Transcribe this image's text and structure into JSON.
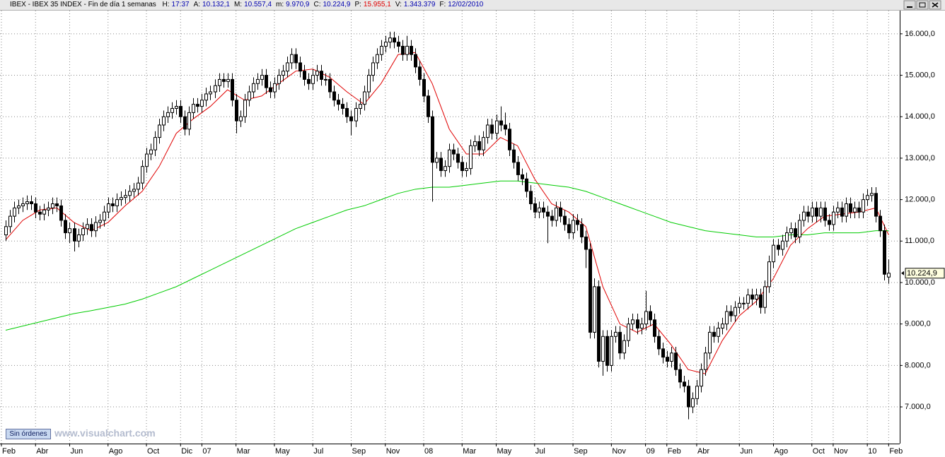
{
  "header": {
    "title": "IBEX - IBEX 35 INDEX - Fin de día 1 semanas",
    "fields": [
      {
        "label": "H:",
        "value": "17:37",
        "color": "#0000b0"
      },
      {
        "label": "A:",
        "value": "10.132,1",
        "color": "#0000b0"
      },
      {
        "label": "M:",
        "value": "10.557,4",
        "color": "#0000b0"
      },
      {
        "label": "m:",
        "value": "9.970,9",
        "color": "#0000b0"
      },
      {
        "label": "C:",
        "value": "10.224,9",
        "color": "#0000b0"
      },
      {
        "label": "P:",
        "value": "15.955,1",
        "color": "#e00000"
      },
      {
        "label": "V:",
        "value": "1.343.379",
        "color": "#0000b0"
      },
      {
        "label": "F:",
        "value": "12/02/2010",
        "color": "#0000b0"
      }
    ]
  },
  "chart_data": {
    "type": "candlestick",
    "up_color": "#ffffff",
    "down_color": "#000000",
    "wick_color": "#000000",
    "open": [
      11150,
      11350,
      11600,
      11800,
      11850,
      11900,
      11950,
      11900,
      11700,
      11650,
      11750,
      11800,
      11900,
      11850,
      11500,
      11200,
      11300,
      11000,
      11150,
      11300,
      11400,
      11250,
      11450,
      11500,
      11700,
      11900,
      11850,
      12000,
      12050,
      12100,
      12200,
      12250,
      12400,
      12800,
      13100,
      13200,
      13500,
      13800,
      14000,
      14100,
      14200,
      14250,
      14000,
      13700,
      14100,
      14300,
      14250,
      14400,
      14550,
      14600,
      14750,
      14900,
      14850,
      14900,
      14400,
      13900,
      14000,
      14400,
      14600,
      14800,
      14900,
      15000,
      14700,
      14600,
      14800,
      15000,
      15100,
      15300,
      15500,
      15300,
      15100,
      14900,
      14800,
      15000,
      15100,
      14900,
      14900,
      14600,
      14400,
      14300,
      14200,
      14000,
      13900,
      14200,
      14300,
      14600,
      15000,
      15300,
      15500,
      15700,
      15800,
      15900,
      15800,
      15700,
      15500,
      15700,
      15500,
      15200,
      14900,
      14500,
      14000,
      12900,
      13000,
      12700,
      12800,
      13200,
      13100,
      12900,
      12700,
      12750,
      13300,
      13400,
      13200,
      13500,
      13800,
      13600,
      13900,
      13800,
      13700,
      13200,
      12900,
      12600,
      12500,
      12200,
      11900,
      11700,
      11800,
      11700,
      11600,
      11500,
      11800,
      11600,
      11400,
      11200,
      11500,
      11400,
      11100,
      10800,
      8800,
      9900,
      8100,
      8700,
      8000,
      8700,
      8800,
      8300,
      8600,
      9000,
      9100,
      8900,
      9000,
      9300,
      9100,
      8700,
      8400,
      8200,
      8100,
      8300,
      7900,
      7600,
      7500,
      7000,
      7200,
      7500,
      7900,
      8300,
      8800,
      8700,
      8900,
      9000,
      9300,
      9200,
      9400,
      9500,
      9500,
      9700,
      9600,
      9700,
      9400,
      9900,
      10500,
      10900,
      10800,
      11000,
      11200,
      11300,
      11100,
      11500,
      11700,
      11600,
      11800,
      11600,
      11800,
      11500,
      11400,
      11700,
      11800,
      11600,
      11900,
      11700,
      11800,
      11700,
      12000,
      12100,
      12150,
      11600,
      11250,
      10132.1
    ],
    "high": [
      11500,
      11750,
      11950,
      12000,
      12050,
      12100,
      12100,
      12050,
      11850,
      11900,
      11950,
      12050,
      12050,
      12000,
      11650,
      11450,
      11450,
      11300,
      11450,
      11550,
      11550,
      11600,
      11650,
      11850,
      12050,
      12050,
      12150,
      12200,
      12250,
      12350,
      12400,
      12550,
      12950,
      13250,
      13350,
      13650,
      13950,
      14150,
      14250,
      14350,
      14400,
      14400,
      14150,
      14250,
      14450,
      14450,
      14550,
      14700,
      14750,
      14900,
      15050,
      15050,
      15050,
      15050,
      14550,
      14150,
      14550,
      14750,
      14950,
      15050,
      15150,
      15150,
      14850,
      14950,
      15150,
      15250,
      15450,
      15650,
      15650,
      15450,
      15250,
      15050,
      15150,
      15250,
      15250,
      15050,
      15050,
      14750,
      14550,
      14450,
      14350,
      14150,
      14350,
      14450,
      14750,
      15150,
      15450,
      15650,
      15850,
      15950,
      16050,
      16050,
      15950,
      15850,
      15950,
      15850,
      15650,
      15350,
      15050,
      14650,
      14150,
      13150,
      13150,
      12950,
      13350,
      13350,
      13250,
      13050,
      12900,
      13450,
      13550,
      13550,
      13650,
      13950,
      13950,
      14050,
      14250,
      14100,
      13850,
      13350,
      13050,
      12750,
      12650,
      12350,
      12050,
      11950,
      11950,
      11850,
      11750,
      11950,
      11950,
      11750,
      11550,
      11650,
      11650,
      11550,
      11250,
      10950,
      10100,
      10050,
      8850,
      8850,
      8850,
      8950,
      8950,
      8750,
      9150,
      9250,
      9250,
      9150,
      9800,
      9450,
      9250,
      8850,
      8550,
      8350,
      8450,
      8450,
      8050,
      7750,
      7650,
      7350,
      7650,
      8050,
      8450,
      8950,
      8950,
      9050,
      9150,
      9450,
      9450,
      9550,
      9650,
      9650,
      9850,
      9850,
      9850,
      9850,
      10050,
      10650,
      11050,
      11050,
      11150,
      11350,
      11450,
      11450,
      11650,
      11850,
      11850,
      11950,
      11950,
      11950,
      11950,
      11650,
      11850,
      11950,
      11950,
      12050,
      12050,
      11950,
      11950,
      12150,
      12250,
      12300,
      12300,
      11750,
      11400,
      10557.4
    ],
    "low": [
      11000,
      11200,
      11450,
      11650,
      11700,
      11750,
      11750,
      11550,
      11500,
      11500,
      11600,
      11650,
      11700,
      11350,
      11050,
      10950,
      10750,
      10850,
      11000,
      11150,
      11100,
      11100,
      11300,
      11350,
      11550,
      11700,
      11700,
      11850,
      11900,
      11950,
      12050,
      12100,
      12250,
      12650,
      12950,
      13050,
      13350,
      13650,
      13850,
      13950,
      14050,
      13850,
      13550,
      13550,
      13950,
      14100,
      14100,
      14250,
      14400,
      14450,
      14600,
      14700,
      14700,
      14250,
      13600,
      13750,
      13850,
      14250,
      14450,
      14650,
      14750,
      14550,
      14450,
      14450,
      14650,
      14850,
      14950,
      15150,
      15150,
      14950,
      14750,
      14650,
      14650,
      14850,
      14750,
      14750,
      14450,
      14250,
      14150,
      14050,
      13850,
      13550,
      13750,
      14050,
      14150,
      14450,
      14850,
      15150,
      15350,
      15550,
      15650,
      15650,
      15550,
      15350,
      15350,
      15350,
      15050,
      14750,
      14350,
      13850,
      11950,
      12750,
      12550,
      12550,
      12650,
      12950,
      12750,
      12550,
      12550,
      12600,
      13150,
      13050,
      13050,
      13350,
      13450,
      13450,
      13650,
      13550,
      13050,
      12750,
      12450,
      12350,
      12050,
      11750,
      11550,
      11550,
      11550,
      10950,
      11350,
      11350,
      11450,
      11250,
      11050,
      11050,
      11250,
      10950,
      10350,
      8650,
      8650,
      7950,
      7750,
      7850,
      7850,
      8550,
      8150,
      8150,
      8450,
      8850,
      8750,
      8750,
      8850,
      8950,
      8550,
      8250,
      8050,
      7950,
      7950,
      7750,
      7450,
      7350,
      6700,
      6850,
      7050,
      7350,
      7750,
      8150,
      8550,
      8550,
      8750,
      8850,
      9050,
      9050,
      9250,
      9350,
      9350,
      9450,
      9450,
      9250,
      9250,
      9750,
      10350,
      10650,
      10650,
      10850,
      11050,
      10950,
      10950,
      11350,
      11450,
      11450,
      11450,
      11450,
      11350,
      11250,
      11250,
      11550,
      11450,
      11450,
      11550,
      11550,
      11550,
      11550,
      11850,
      11950,
      11450,
      11100,
      10050,
      9970.9
    ],
    "close": [
      11350,
      11600,
      11800,
      11850,
      11900,
      11950,
      11900,
      11700,
      11650,
      11750,
      11800,
      11900,
      11850,
      11500,
      11200,
      11300,
      11000,
      11150,
      11300,
      11400,
      11250,
      11450,
      11500,
      11700,
      11900,
      11850,
      12000,
      12050,
      12100,
      12200,
      12250,
      12400,
      12800,
      13100,
      13200,
      13500,
      13800,
      14000,
      14100,
      14200,
      14250,
      14000,
      13700,
      14100,
      14300,
      14250,
      14400,
      14550,
      14600,
      14750,
      14900,
      14850,
      14900,
      14400,
      13900,
      14000,
      14400,
      14600,
      14800,
      14900,
      15000,
      14700,
      14600,
      14800,
      15000,
      15100,
      15300,
      15500,
      15300,
      15100,
      14900,
      14800,
      15000,
      15100,
      14900,
      14900,
      14600,
      14400,
      14300,
      14200,
      14000,
      13900,
      14200,
      14300,
      14600,
      15000,
      15300,
      15500,
      15700,
      15800,
      15900,
      15800,
      15700,
      15500,
      15700,
      15500,
      15200,
      14900,
      14500,
      14000,
      12900,
      13000,
      12700,
      12800,
      13200,
      13100,
      12900,
      12700,
      12750,
      13300,
      13400,
      13200,
      13500,
      13800,
      13600,
      13900,
      13800,
      13700,
      13200,
      12900,
      12600,
      12500,
      12200,
      11900,
      11700,
      11800,
      11700,
      11600,
      11500,
      11800,
      11600,
      11400,
      11200,
      11500,
      11400,
      11100,
      10800,
      8800,
      9900,
      8100,
      8700,
      8000,
      8700,
      8800,
      8300,
      8600,
      9000,
      9100,
      8900,
      9000,
      9300,
      9100,
      8700,
      8400,
      8200,
      8100,
      8300,
      7900,
      7600,
      7500,
      7000,
      7200,
      7500,
      7900,
      8300,
      8800,
      8700,
      8900,
      9000,
      9300,
      9200,
      9400,
      9500,
      9500,
      9700,
      9600,
      9700,
      9400,
      9900,
      10500,
      10900,
      10800,
      11000,
      11200,
      11300,
      11100,
      11500,
      11700,
      11600,
      11800,
      11600,
      11800,
      11500,
      11400,
      11700,
      11800,
      11600,
      11900,
      11700,
      11800,
      11700,
      12000,
      12100,
      12150,
      11600,
      11250,
      10200,
      10224.9
    ],
    "overlays": [
      {
        "color": "#e00000",
        "x": [
          0,
          4,
          8,
          12,
          16,
          20,
          24,
          28,
          32,
          36,
          40,
          44,
          48,
          52,
          56,
          60,
          64,
          68,
          72,
          76,
          80,
          84,
          88,
          92,
          96,
          100,
          104,
          108,
          112,
          116,
          120,
          124,
          128,
          132,
          136,
          140,
          144,
          148,
          152,
          156,
          160,
          164,
          168,
          172,
          176,
          180,
          184,
          188,
          192,
          196,
          200,
          204,
          207
        ],
        "values": [
          11030,
          11500,
          11750,
          11800,
          11450,
          11250,
          11450,
          11850,
          12200,
          12800,
          13600,
          13950,
          14250,
          14650,
          14400,
          14500,
          14800,
          15100,
          15150,
          14950,
          14600,
          14300,
          14800,
          15500,
          15550,
          14800,
          13700,
          13100,
          13100,
          13500,
          13300,
          12500,
          11900,
          11700,
          11350,
          9900,
          9000,
          8800,
          9000,
          8500,
          7900,
          7800,
          8600,
          9200,
          9550,
          10100,
          10900,
          11300,
          11600,
          11650,
          11700,
          11800,
          11150
        ]
      },
      {
        "color": "#00cc00",
        "x": [
          0,
          4,
          8,
          12,
          16,
          20,
          24,
          28,
          32,
          36,
          40,
          44,
          48,
          52,
          56,
          60,
          64,
          68,
          72,
          76,
          80,
          84,
          88,
          92,
          96,
          100,
          104,
          108,
          112,
          116,
          120,
          124,
          128,
          132,
          136,
          140,
          144,
          148,
          152,
          156,
          160,
          164,
          168,
          172,
          176,
          180,
          184,
          188,
          192,
          196,
          200,
          204,
          207
        ],
        "values": [
          8850,
          8950,
          9050,
          9150,
          9250,
          9320,
          9400,
          9480,
          9600,
          9750,
          9900,
          10100,
          10300,
          10500,
          10700,
          10900,
          11100,
          11300,
          11450,
          11600,
          11750,
          11850,
          12000,
          12150,
          12250,
          12300,
          12300,
          12350,
          12400,
          12450,
          12450,
          12400,
          12350,
          12300,
          12200,
          12050,
          11900,
          11750,
          11600,
          11450,
          11350,
          11250,
          11200,
          11150,
          11100,
          11100,
          11150,
          11150,
          11200,
          11200,
          11200,
          11250,
          11250
        ]
      }
    ],
    "last_label": "10.224,9",
    "xlim": [
      -1.33,
      209.6
    ],
    "xticks": [
      {
        "value": -1,
        "label": "Feb"
      },
      {
        "value": 7,
        "label": "Abr"
      },
      {
        "value": 15,
        "label": "Jun"
      },
      {
        "value": 24,
        "label": "Ago"
      },
      {
        "value": 33,
        "label": "Oct"
      },
      {
        "value": 41,
        "label": "Dic"
      },
      {
        "value": 46,
        "label": "07"
      },
      {
        "value": 54,
        "label": "Mar"
      },
      {
        "value": 63,
        "label": "May"
      },
      {
        "value": 72,
        "label": "Jul"
      },
      {
        "value": 81,
        "label": "Sep"
      },
      {
        "value": 89,
        "label": "Nov"
      },
      {
        "value": 98,
        "label": "08"
      },
      {
        "value": 107,
        "label": "Mar"
      },
      {
        "value": 115,
        "label": "May"
      },
      {
        "value": 124,
        "label": "Jul"
      },
      {
        "value": 133,
        "label": "Sep"
      },
      {
        "value": 142,
        "label": "Nov"
      },
      {
        "value": 150,
        "label": "09"
      },
      {
        "value": 155,
        "label": "Feb"
      },
      {
        "value": 162,
        "label": "Abr"
      },
      {
        "value": 172,
        "label": "Jun"
      },
      {
        "value": 180,
        "label": "Ago"
      },
      {
        "value": 189,
        "label": "Oct"
      },
      {
        "value": 194,
        "label": "Nov"
      },
      {
        "value": 202,
        "label": "10"
      },
      {
        "value": 207,
        "label": "Feb"
      }
    ],
    "ylim": [
      6115,
      16560
    ],
    "yticks": [
      {
        "value": 7000,
        "label": "7.000,0"
      },
      {
        "value": 8000,
        "label": "8.000,0"
      },
      {
        "value": 9000,
        "label": "9.000,0"
      },
      {
        "value": 10000,
        "label": "10.000,0"
      },
      {
        "value": 11000,
        "label": "11.000,0"
      },
      {
        "value": 12000,
        "label": "12.000,0"
      },
      {
        "value": 13000,
        "label": "13.000,0"
      },
      {
        "value": 14000,
        "label": "14.000,0"
      },
      {
        "value": 15000,
        "label": "15.000,0"
      },
      {
        "value": 16000,
        "label": "16.000,0"
      }
    ],
    "grid": true
  },
  "footer": {
    "button": "Sin órdenes",
    "watermark": "www.visualchart.com"
  }
}
